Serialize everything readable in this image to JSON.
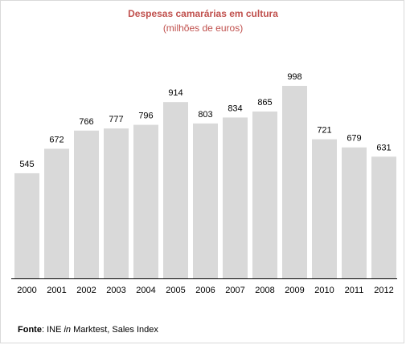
{
  "chart_data": {
    "type": "bar",
    "title": "Despesas camarárias em cultura",
    "subtitle": "(milhões de euros)",
    "categories": [
      "2000",
      "2001",
      "2002",
      "2003",
      "2004",
      "2005",
      "2006",
      "2007",
      "2008",
      "2009",
      "2010",
      "2011",
      "2012"
    ],
    "values": [
      545,
      672,
      766,
      777,
      796,
      914,
      803,
      834,
      865,
      998,
      721,
      679,
      631
    ],
    "xlabel": "",
    "ylabel": "",
    "ylim": [
      0,
      998
    ],
    "grid": false,
    "data_labels": true,
    "bar_color": "#d9d9d9",
    "title_color": "#c0504d"
  },
  "source": {
    "label": "Fonte",
    "sep": ": INE ",
    "italic": "in",
    "rest": " Marktest, Sales Index"
  }
}
